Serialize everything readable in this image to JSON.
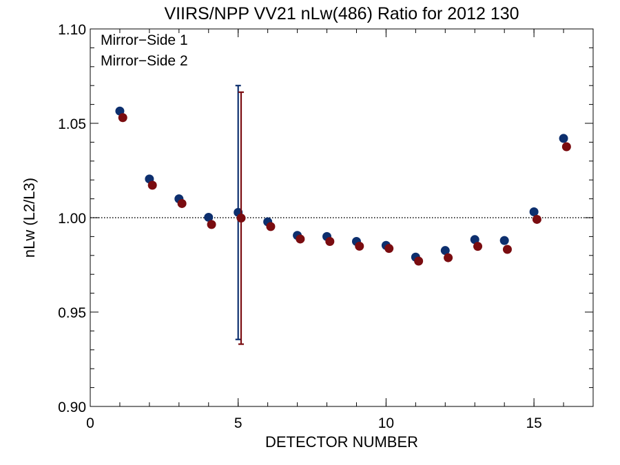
{
  "chart_data": {
    "type": "scatter",
    "title": "VIIRS/NPP VV21 nLw(486) Ratio for 2012 130",
    "xlabel": "DETECTOR NUMBER",
    "ylabel": "nLw (L2/L3)",
    "xlim": [
      0,
      17
    ],
    "ylim": [
      0.9,
      1.1
    ],
    "x_ticks": [
      0,
      5,
      10,
      15
    ],
    "x_tick_labels": [
      "0",
      "5",
      "10",
      "15"
    ],
    "y_ticks": [
      0.9,
      0.95,
      1.0,
      1.05,
      1.1
    ],
    "y_tick_labels": [
      "0.90",
      "0.95",
      "1.00",
      "1.05",
      "1.10"
    ],
    "reference_line": 1.0,
    "grid": false,
    "legend_position": "top-left",
    "series": [
      {
        "name": "Mirror−Side 1",
        "color": "#0d2f6e",
        "x": [
          1,
          2,
          3,
          4,
          5,
          6,
          7,
          8,
          9,
          10,
          11,
          12,
          13,
          14,
          15,
          16
        ],
        "y": [
          1.0565,
          1.0205,
          1.01,
          1.0002,
          1.0028,
          0.9978,
          0.9906,
          0.99,
          0.9874,
          0.9853,
          0.9791,
          0.9826,
          0.9884,
          0.9879,
          1.0031,
          1.042
        ],
        "error_bar": {
          "x": 5,
          "low": 0.9355,
          "high": 1.07
        }
      },
      {
        "name": "Mirror−Side 2",
        "color": "#7a0c10",
        "x": [
          1.1,
          2.1,
          3.1,
          4.1,
          5.1,
          6.1,
          7.1,
          8.1,
          9.1,
          10.1,
          11.1,
          12.1,
          13.1,
          14.1,
          15.1,
          16.1
        ],
        "y": [
          1.053,
          1.0172,
          1.0075,
          0.9964,
          0.9998,
          0.9953,
          0.9887,
          0.9874,
          0.9849,
          0.9837,
          0.977,
          0.9788,
          0.9848,
          0.9832,
          0.9991,
          1.0376
        ],
        "error_bar": {
          "x": 5.1,
          "low": 0.933,
          "high": 1.0665
        }
      }
    ]
  }
}
